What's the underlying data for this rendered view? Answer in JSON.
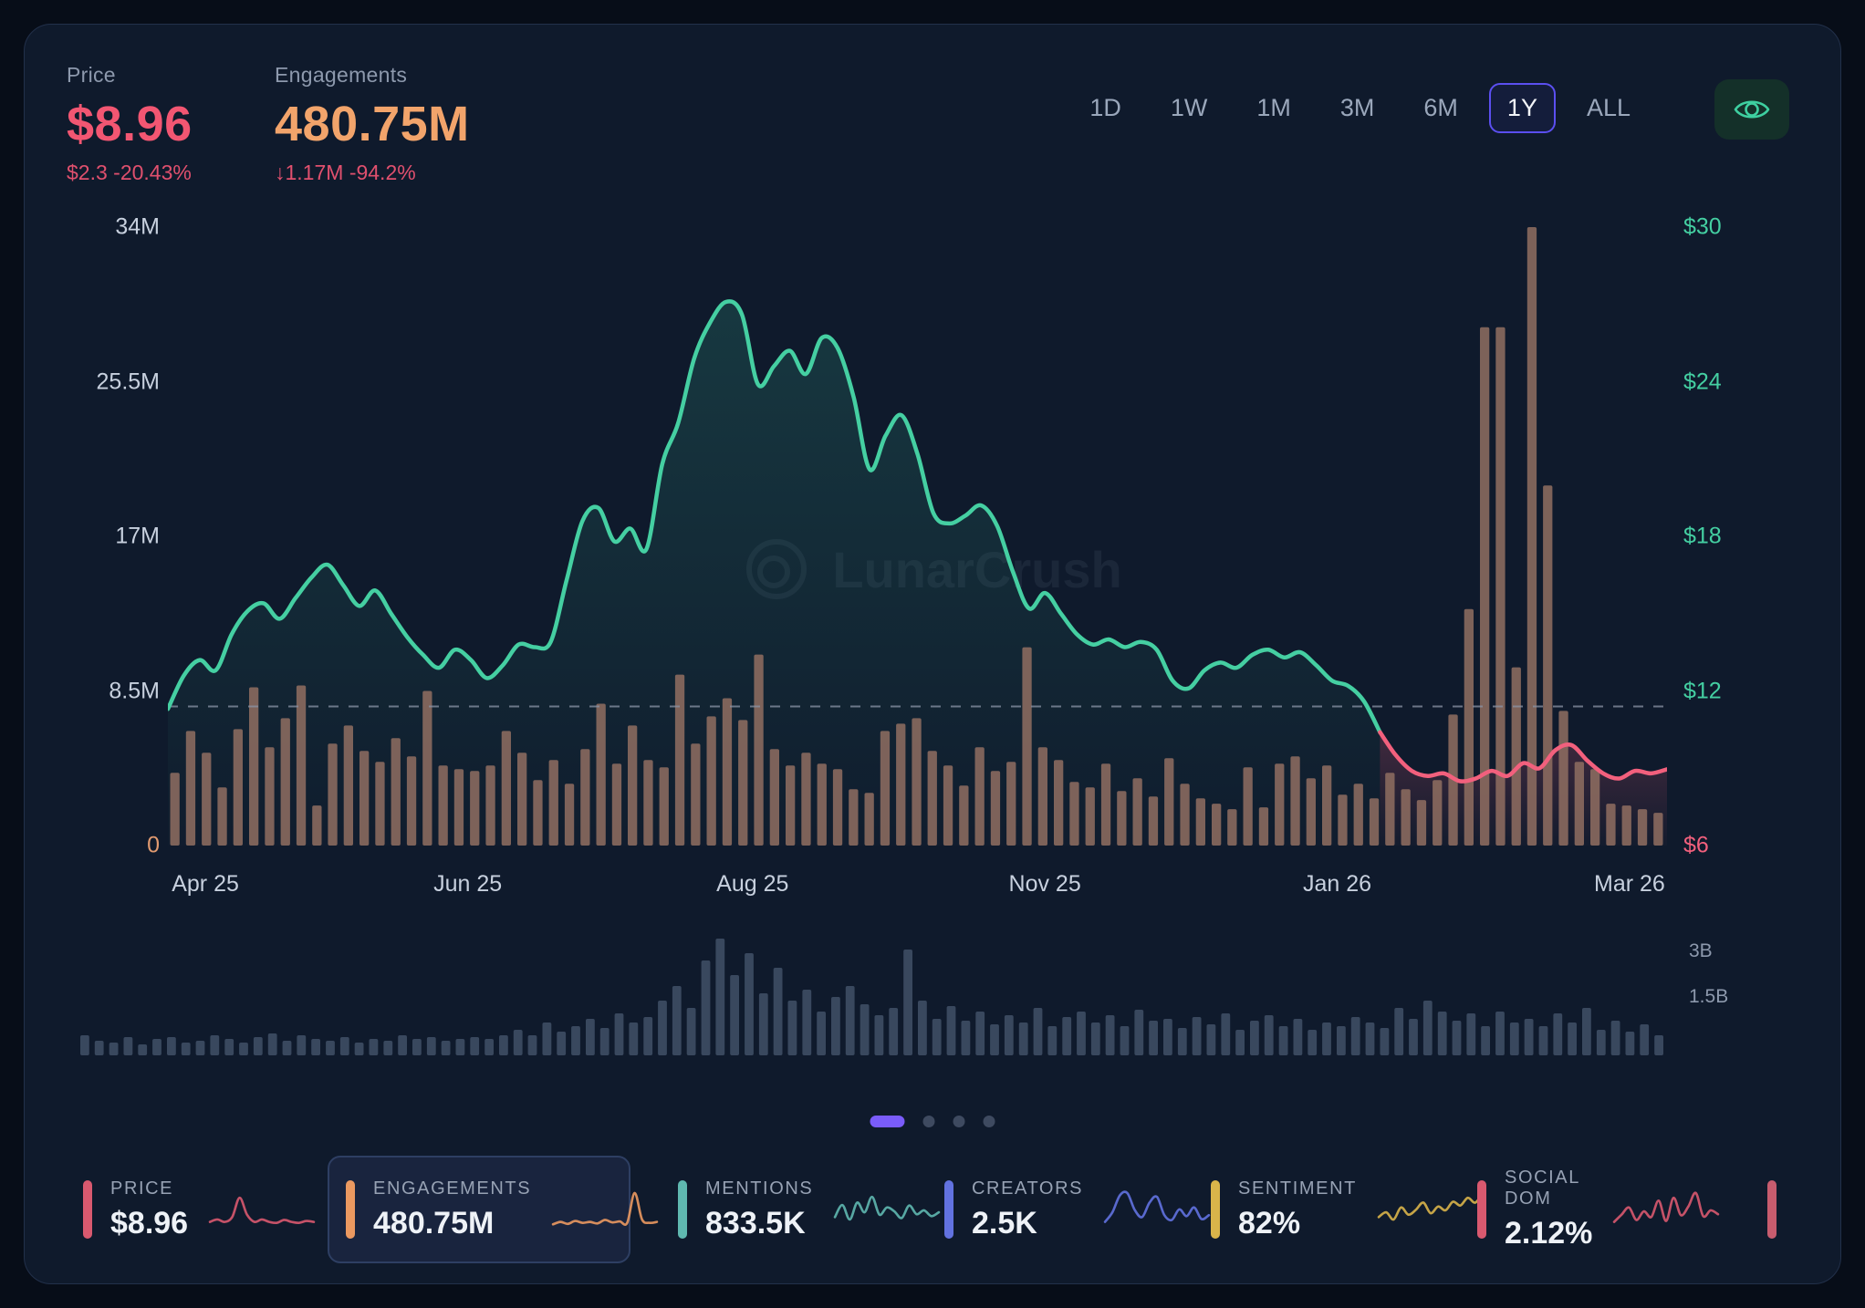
{
  "header": {
    "price": {
      "label": "Price",
      "value": "$8.96",
      "change": "$2.3  -20.43%"
    },
    "engagements": {
      "label": "Engagements",
      "value": "480.75M",
      "change": "↓1.17M  -94.2%"
    }
  },
  "timeframes": {
    "options": [
      "1D",
      "1W",
      "1M",
      "3M",
      "6M",
      "1Y",
      "ALL"
    ],
    "selected": "1Y"
  },
  "watermark": "LunarCrush",
  "colors": {
    "line_teal": "#45cfa2",
    "line_red": "#f2607d",
    "bar_brown": "#8d6c60",
    "mini_bar": "#4a5a72",
    "accent_purple": "#5b4ff0",
    "value_pink": "#f25672",
    "value_orange": "#f2a46b"
  },
  "chart_data": {
    "type": "combo-bar-line",
    "title": "Engagements vs Price, 1Y",
    "x_ticks": [
      "Apr 25",
      "Jun 25",
      "Aug 25",
      "Nov 25",
      "Jan 26",
      "Mar 26"
    ],
    "left_axis": {
      "title": "Engagements",
      "ticks": [
        "34M",
        "25.5M",
        "17M",
        "8.5M",
        "0"
      ],
      "max_millions": 34
    },
    "right_axis": {
      "title": "Price",
      "ticks": [
        "$30",
        "$24",
        "$18",
        "$12",
        "$6"
      ],
      "min": 6,
      "max": 30
    },
    "dashed_reference_price": 11.4,
    "engagements_millions": [
      4.0,
      6.3,
      5.1,
      3.2,
      6.4,
      8.7,
      5.4,
      7.0,
      8.8,
      2.2,
      5.6,
      6.6,
      5.2,
      4.6,
      5.9,
      4.9,
      8.5,
      4.4,
      4.2,
      4.1,
      4.4,
      6.3,
      5.1,
      3.6,
      4.7,
      3.4,
      5.3,
      7.8,
      4.5,
      6.6,
      4.7,
      4.3,
      9.4,
      5.6,
      7.1,
      8.1,
      6.9,
      10.5,
      5.3,
      4.4,
      5.1,
      4.5,
      4.2,
      3.1,
      2.9,
      6.3,
      6.7,
      7.0,
      5.2,
      4.4,
      3.3,
      5.4,
      4.1,
      4.6,
      10.9,
      5.4,
      4.7,
      3.5,
      3.2,
      4.5,
      3.0,
      3.7,
      2.7,
      4.8,
      3.4,
      2.6,
      2.3,
      2.0,
      4.3,
      2.1,
      4.5,
      4.9,
      3.7,
      4.4,
      2.8,
      3.4,
      2.6,
      4.0,
      3.1,
      2.5,
      3.6,
      7.2,
      13.0,
      28.5,
      28.5,
      9.8,
      34.0,
      19.8,
      7.4,
      4.6,
      4.2,
      2.3,
      2.2,
      2.0,
      1.8
    ],
    "price_usd": [
      11.3,
      12.6,
      13.2,
      12.8,
      14.2,
      15.1,
      15.4,
      14.8,
      15.6,
      16.4,
      16.9,
      16.1,
      15.3,
      15.9,
      15.0,
      14.1,
      13.4,
      12.9,
      13.6,
      13.2,
      12.5,
      13.0,
      13.8,
      13.7,
      13.9,
      16.3,
      18.6,
      19.1,
      17.8,
      18.3,
      17.5,
      20.8,
      22.4,
      24.9,
      26.3,
      27.1,
      26.6,
      23.9,
      24.6,
      25.2,
      24.3,
      25.7,
      25.3,
      23.4,
      20.6,
      21.9,
      22.7,
      21.2,
      18.9,
      18.5,
      18.8,
      19.2,
      18.4,
      16.6,
      15.2,
      15.8,
      15.0,
      14.2,
      13.8,
      14.0,
      13.7,
      13.9,
      13.6,
      12.4,
      12.1,
      12.8,
      13.1,
      12.9,
      13.4,
      13.6,
      13.3,
      13.5,
      13.0,
      12.4,
      12.2,
      11.6,
      10.4,
      9.5,
      8.9,
      8.7,
      8.8,
      8.5,
      8.6,
      8.9,
      8.7,
      9.2,
      9.0,
      9.7,
      9.9,
      9.3,
      8.8,
      8.6,
      8.9,
      8.8,
      8.96
    ],
    "price_color_switch_index": 76,
    "volume_chart": {
      "ticks": [
        "3B",
        "1.5B"
      ],
      "max_billions": 3.3,
      "values_billions": [
        0.55,
        0.4,
        0.35,
        0.5,
        0.3,
        0.45,
        0.5,
        0.35,
        0.4,
        0.55,
        0.45,
        0.35,
        0.5,
        0.6,
        0.4,
        0.55,
        0.45,
        0.4,
        0.5,
        0.35,
        0.45,
        0.4,
        0.55,
        0.45,
        0.5,
        0.4,
        0.45,
        0.5,
        0.45,
        0.55,
        0.7,
        0.55,
        0.9,
        0.65,
        0.8,
        1.0,
        0.75,
        1.15,
        0.9,
        1.05,
        1.5,
        1.9,
        1.3,
        2.6,
        3.2,
        2.2,
        2.8,
        1.7,
        2.4,
        1.5,
        1.8,
        1.2,
        1.6,
        1.9,
        1.4,
        1.1,
        1.3,
        2.9,
        1.5,
        1.0,
        1.35,
        0.95,
        1.2,
        0.85,
        1.1,
        0.9,
        1.3,
        0.8,
        1.05,
        1.2,
        0.9,
        1.1,
        0.8,
        1.25,
        0.95,
        1.0,
        0.75,
        1.05,
        0.85,
        1.15,
        0.7,
        0.95,
        1.1,
        0.8,
        1.0,
        0.7,
        0.9,
        0.8,
        1.05,
        0.9,
        0.75,
        1.3,
        1.0,
        1.5,
        1.2,
        0.95,
        1.15,
        0.8,
        1.2,
        0.9,
        1.0,
        0.8,
        1.15,
        0.9,
        1.3,
        0.7,
        0.95,
        0.65,
        0.85,
        0.55
      ]
    }
  },
  "pagination": {
    "count": 4,
    "active": 0
  },
  "cards": [
    {
      "label": "PRICE",
      "value": "$8.96",
      "accent": "#d9596f",
      "selected": false,
      "sparkline": [
        3,
        3.5,
        3,
        4,
        8,
        4.5,
        3,
        3.5,
        3,
        2.8,
        3.4,
        3,
        2.8,
        3.2,
        3
      ]
    },
    {
      "label": "ENGAGEMENTS",
      "value": "480.75M",
      "accent": "#eb9960",
      "selected": true,
      "sparkline": [
        2.5,
        3,
        2.6,
        3.2,
        2.8,
        3,
        2.7,
        3.4,
        2.9,
        3.1,
        2.8,
        9,
        3.5,
        2.8,
        3
      ]
    },
    {
      "label": "MENTIONS",
      "value": "833.5K",
      "accent": "#5fb8b0",
      "selected": false,
      "sparkline": [
        4,
        6.5,
        3.5,
        7,
        5,
        8.2,
        4.5,
        6,
        5.2,
        3.8,
        6.4,
        4.6,
        5.4,
        4.2,
        5
      ]
    },
    {
      "label": "CREATORS",
      "value": "2.5K",
      "accent": "#6272e0",
      "selected": false,
      "sparkline": [
        3,
        5,
        8.5,
        9,
        5.5,
        4,
        7,
        8.2,
        4.4,
        3.4,
        5.6,
        4.2,
        6,
        3.6,
        4.4
      ]
    },
    {
      "label": "SENTIMENT",
      "value": "82%",
      "accent": "#d9b44a",
      "selected": false,
      "sparkline": [
        4,
        5,
        3.5,
        6,
        4.5,
        5.5,
        7,
        4.8,
        6.2,
        5.4,
        7.2,
        6.4,
        8,
        7,
        9
      ]
    },
    {
      "label": "SOCIAL DOM",
      "value": "2.12%",
      "accent": "#d9596f",
      "selected": false,
      "sparkline": [
        3,
        4.5,
        6,
        3.4,
        5.2,
        4,
        7.4,
        3.2,
        8,
        4.4,
        6.2,
        9,
        4.2,
        5.4,
        4.6
      ]
    },
    {
      "label": "",
      "value": "",
      "accent": "#c75c6e",
      "selected": false,
      "partial": true,
      "sparkline": []
    }
  ]
}
